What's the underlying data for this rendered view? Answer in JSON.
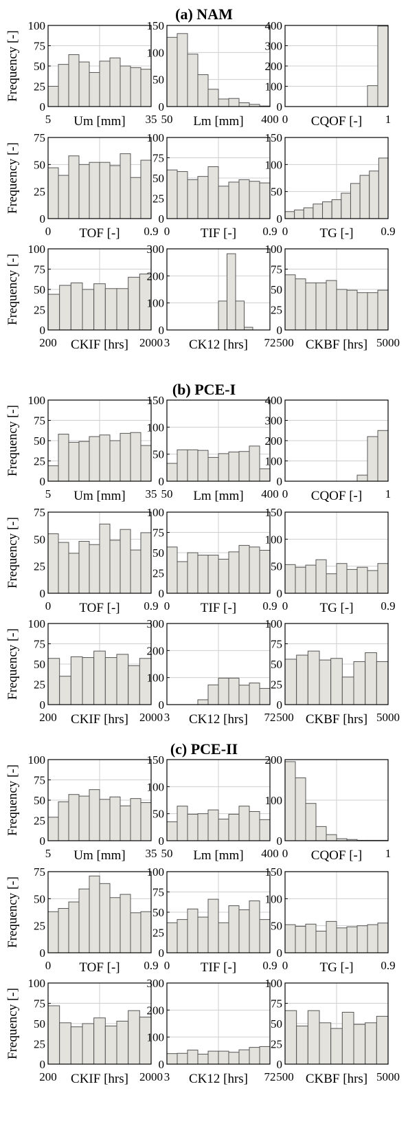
{
  "figure": {
    "sections": [
      {
        "title": "(a) NAM",
        "charts": [
          {
            "type": "bar",
            "xlabel": "Um [mm]",
            "ylabel": "Frequency [-]",
            "xticks": [
              "5",
              "35"
            ],
            "ylim": [
              0,
              100
            ],
            "yticks": [
              "0",
              "25",
              "50",
              "75",
              "100"
            ],
            "values": [
              25,
              52,
              64,
              55,
              42,
              56,
              60,
              50,
              48,
              46
            ]
          },
          {
            "type": "bar",
            "xlabel": "Lm [mm]",
            "ylabel": "",
            "xticks": [
              "50",
              "400"
            ],
            "ylim": [
              0,
              150
            ],
            "yticks": [
              "0",
              "50",
              "100",
              "150"
            ],
            "values": [
              128,
              135,
              97,
              59,
              32,
              14,
              15,
              7,
              4,
              1
            ]
          },
          {
            "type": "bar",
            "xlabel": "CQOF [-]",
            "ylabel": "",
            "xticks": [
              "0",
              "1"
            ],
            "ylim": [
              0,
              400
            ],
            "yticks": [
              "0",
              "100",
              "200",
              "300",
              "400"
            ],
            "values": [
              0,
              0,
              0,
              0,
              0,
              0,
              0,
              0,
              103,
              397
            ]
          },
          {
            "type": "bar",
            "xlabel": "TOF [-]",
            "ylabel": "Frequency [-]",
            "xticks": [
              "0",
              "0.9"
            ],
            "ylim": [
              0,
              75
            ],
            "yticks": [
              "0",
              "25",
              "50",
              "75"
            ],
            "values": [
              47,
              40,
              58,
              50,
              52,
              52,
              49,
              60,
              38,
              54
            ]
          },
          {
            "type": "bar",
            "xlabel": "TIF [-]",
            "ylabel": "",
            "xticks": [
              "0",
              "0.9"
            ],
            "ylim": [
              0,
              100
            ],
            "yticks": [
              "0",
              "25",
              "50",
              "75",
              "100"
            ],
            "values": [
              60,
              58,
              48,
              52,
              64,
              40,
              45,
              48,
              46,
              44
            ]
          },
          {
            "type": "bar",
            "xlabel": "TG [-]",
            "ylabel": "",
            "xticks": [
              "0",
              "0.9"
            ],
            "ylim": [
              0,
              150
            ],
            "yticks": [
              "0",
              "50",
              "100",
              "150"
            ],
            "values": [
              13,
              16,
              20,
              27,
              31,
              35,
              47,
              65,
              80,
              88,
              112
            ]
          },
          {
            "type": "bar",
            "xlabel": "CKIF [hrs]",
            "ylabel": "Frequency [-]",
            "xticks": [
              "200",
              "2000"
            ],
            "ylim": [
              0,
              100
            ],
            "yticks": [
              "0",
              "25",
              "50",
              "75",
              "100"
            ],
            "values": [
              44,
              55,
              58,
              50,
              57,
              51,
              51,
              65,
              69
            ]
          },
          {
            "type": "bar",
            "xlabel": "CK12 [hrs]",
            "ylabel": "",
            "xticks": [
              "3",
              "72"
            ],
            "ylim": [
              0,
              300
            ],
            "yticks": [
              "0",
              "100",
              "200",
              "300"
            ],
            "values": [
              0,
              0,
              0,
              0,
              0,
              0,
              107,
              282,
              107,
              10,
              0,
              0
            ]
          },
          {
            "type": "bar",
            "xlabel": "CKBF [hrs]",
            "ylabel": "",
            "xticks": [
              "500",
              "5000"
            ],
            "ylim": [
              0,
              100
            ],
            "yticks": [
              "0",
              "25",
              "50",
              "75",
              "100"
            ],
            "values": [
              68,
              63,
              58,
              58,
              61,
              50,
              49,
              46,
              46,
              49
            ]
          }
        ]
      },
      {
        "title": "(b) PCE-I",
        "charts": [
          {
            "type": "bar",
            "xlabel": "Um [mm]",
            "ylabel": "Frequency [-]",
            "xticks": [
              "5",
              "35"
            ],
            "ylim": [
              0,
              100
            ],
            "yticks": [
              "0",
              "25",
              "50",
              "75",
              "100"
            ],
            "values": [
              19,
              58,
              48,
              49,
              55,
              57,
              50,
              59,
              60,
              44
            ]
          },
          {
            "type": "bar",
            "xlabel": "Lm [mm]",
            "ylabel": "",
            "xticks": [
              "50",
              "400"
            ],
            "ylim": [
              0,
              150
            ],
            "yticks": [
              "0",
              "50",
              "100",
              "150"
            ],
            "values": [
              33,
              58,
              58,
              57,
              44,
              51,
              54,
              55,
              65,
              23
            ]
          },
          {
            "type": "bar",
            "xlabel": "CQOF [-]",
            "ylabel": "",
            "xticks": [
              "0",
              "1"
            ],
            "ylim": [
              0,
              400
            ],
            "yticks": [
              "0",
              "100",
              "200",
              "300",
              "400"
            ],
            "values": [
              0,
              0,
              0,
              0,
              0,
              0,
              0,
              30,
              220,
              250
            ]
          },
          {
            "type": "bar",
            "xlabel": "TOF [-]",
            "ylabel": "Frequency [-]",
            "xticks": [
              "0",
              "0.9"
            ],
            "ylim": [
              0,
              75
            ],
            "yticks": [
              "0",
              "25",
              "50",
              "75"
            ],
            "values": [
              55,
              47,
              37,
              48,
              45,
              64,
              49,
              59,
              40,
              56
            ]
          },
          {
            "type": "bar",
            "xlabel": "TIF [-]",
            "ylabel": "",
            "xticks": [
              "0",
              "0.9"
            ],
            "ylim": [
              0,
              100
            ],
            "yticks": [
              "0",
              "25",
              "50",
              "75",
              "100"
            ],
            "values": [
              57,
              39,
              50,
              47,
              47,
              42,
              51,
              59,
              57,
              53
            ]
          },
          {
            "type": "bar",
            "xlabel": "TG [-]",
            "ylabel": "",
            "xticks": [
              "0",
              "0.9"
            ],
            "ylim": [
              0,
              150
            ],
            "yticks": [
              "0",
              "50",
              "100",
              "150"
            ],
            "values": [
              53,
              48,
              52,
              62,
              36,
              55,
              44,
              48,
              42,
              55
            ]
          },
          {
            "type": "bar",
            "xlabel": "CKIF [hrs]",
            "ylabel": "Frequency [-]",
            "xticks": [
              "200",
              "2000"
            ],
            "ylim": [
              0,
              100
            ],
            "yticks": [
              "0",
              "25",
              "50",
              "75",
              "100"
            ],
            "values": [
              57,
              35,
              59,
              58,
              66,
              58,
              62,
              48,
              57
            ]
          },
          {
            "type": "bar",
            "xlabel": "CK12 [hrs]",
            "ylabel": "",
            "xticks": [
              "3",
              "72"
            ],
            "ylim": [
              0,
              300
            ],
            "yticks": [
              "0",
              "100",
              "200",
              "300"
            ],
            "values": [
              0,
              0,
              0,
              18,
              73,
              98,
              98,
              72,
              80,
              60
            ]
          },
          {
            "type": "bar",
            "xlabel": "CKBF [hrs]",
            "ylabel": "",
            "xticks": [
              "500",
              "5000"
            ],
            "ylim": [
              0,
              100
            ],
            "yticks": [
              "0",
              "25",
              "50",
              "75",
              "100"
            ],
            "values": [
              56,
              61,
              66,
              55,
              57,
              34,
              53,
              64,
              53
            ]
          }
        ]
      },
      {
        "title": "(c) PCE-II",
        "charts": [
          {
            "type": "bar",
            "xlabel": "Um [mm]",
            "ylabel": "Frequency [-]",
            "xticks": [
              "5",
              "35"
            ],
            "ylim": [
              0,
              100
            ],
            "yticks": [
              "0",
              "25",
              "50",
              "75",
              "100"
            ],
            "values": [
              29,
              48,
              57,
              55,
              63,
              51,
              54,
              43,
              52,
              47
            ]
          },
          {
            "type": "bar",
            "xlabel": "Lm [mm]",
            "ylabel": "",
            "xticks": [
              "50",
              "400"
            ],
            "ylim": [
              0,
              150
            ],
            "yticks": [
              "0",
              "50",
              "100",
              "150"
            ],
            "values": [
              35,
              64,
              49,
              50,
              57,
              40,
              49,
              64,
              54,
              39
            ]
          },
          {
            "type": "bar",
            "xlabel": "CQOF [-]",
            "ylabel": "",
            "xticks": [
              "0",
              "1"
            ],
            "ylim": [
              0,
              200
            ],
            "yticks": [
              "0",
              "100",
              "200"
            ],
            "values": [
              195,
              155,
              92,
              35,
              15,
              5,
              3,
              1,
              1,
              1
            ]
          },
          {
            "type": "bar",
            "xlabel": "TOF [-]",
            "ylabel": "Frequency [-]",
            "xticks": [
              "0",
              "0.9"
            ],
            "ylim": [
              0,
              75
            ],
            "yticks": [
              "0",
              "25",
              "50",
              "75"
            ],
            "values": [
              38,
              41,
              47,
              59,
              71,
              64,
              51,
              54,
              37,
              38
            ]
          },
          {
            "type": "bar",
            "xlabel": "TIF [-]",
            "ylabel": "",
            "xticks": [
              "0",
              "0.9"
            ],
            "ylim": [
              0,
              100
            ],
            "yticks": [
              "0",
              "25",
              "50",
              "75",
              "100"
            ],
            "values": [
              37,
              41,
              54,
              44,
              66,
              37,
              58,
              53,
              64,
              41
            ]
          },
          {
            "type": "bar",
            "xlabel": "TG [-]",
            "ylabel": "",
            "xticks": [
              "0",
              "0.9"
            ],
            "ylim": [
              0,
              150
            ],
            "yticks": [
              "0",
              "50",
              "100",
              "150"
            ],
            "values": [
              52,
              49,
              53,
              40,
              58,
              46,
              48,
              50,
              52,
              55
            ]
          },
          {
            "type": "bar",
            "xlabel": "CKIF [hrs]",
            "ylabel": "Frequency [-]",
            "xticks": [
              "200",
              "2000"
            ],
            "ylim": [
              0,
              100
            ],
            "yticks": [
              "0",
              "25",
              "50",
              "75",
              "100"
            ],
            "values": [
              72,
              51,
              46,
              50,
              57,
              47,
              53,
              66,
              58
            ]
          },
          {
            "type": "bar",
            "xlabel": "CK12 [hrs]",
            "ylabel": "",
            "xticks": [
              "3",
              "72"
            ],
            "ylim": [
              0,
              300
            ],
            "yticks": [
              "0",
              "100",
              "200",
              "300"
            ],
            "values": [
              39,
              40,
              52,
              37,
              48,
              48,
              44,
              53,
              62,
              65
            ]
          },
          {
            "type": "bar",
            "xlabel": "CKBF [hrs]",
            "ylabel": "",
            "xticks": [
              "500",
              "5000"
            ],
            "ylim": [
              0,
              100
            ],
            "yticks": [
              "0",
              "25",
              "50",
              "75",
              "100"
            ],
            "values": [
              66,
              47,
              66,
              51,
              44,
              64,
              49,
              51,
              59
            ]
          }
        ]
      }
    ]
  },
  "chart_data": []
}
